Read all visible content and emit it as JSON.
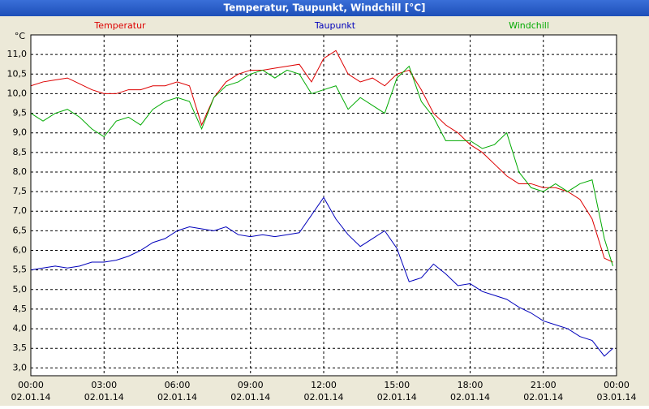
{
  "chart_data": {
    "type": "line",
    "title": "Temperatur, Taupunkt, Windchill [°C]",
    "y_unit": "°C",
    "x": [
      0,
      0.5,
      1,
      1.5,
      2,
      2.5,
      3,
      3.5,
      4,
      4.5,
      5,
      5.5,
      6,
      6.5,
      7,
      7.5,
      8,
      8.5,
      9,
      9.5,
      10,
      10.5,
      11,
      11.5,
      12,
      12.5,
      13,
      13.5,
      14,
      14.5,
      15,
      15.5,
      16,
      16.5,
      17,
      17.5,
      18,
      18.5,
      19,
      19.5,
      20,
      20.5,
      21,
      21.5,
      22,
      22.5,
      23,
      23.5,
      23.85
    ],
    "series": [
      {
        "name": "Temperatur",
        "color": "#dd0000",
        "values": [
          10.2,
          10.3,
          10.35,
          10.4,
          10.25,
          10.1,
          10.0,
          10.0,
          10.1,
          10.1,
          10.2,
          10.2,
          10.3,
          10.2,
          9.2,
          9.9,
          10.3,
          10.5,
          10.6,
          10.6,
          10.65,
          10.7,
          10.75,
          10.3,
          10.9,
          11.1,
          10.5,
          10.3,
          10.4,
          10.2,
          10.5,
          10.6,
          10.1,
          9.5,
          9.2,
          9.0,
          8.7,
          8.5,
          8.2,
          7.9,
          7.7,
          7.7,
          7.6,
          7.6,
          7.5,
          7.3,
          6.8,
          5.8,
          5.7
        ]
      },
      {
        "name": "Taupunkt",
        "color": "#0000bb",
        "values": [
          5.5,
          5.55,
          5.6,
          5.55,
          5.6,
          5.7,
          5.7,
          5.75,
          5.85,
          6.0,
          6.2,
          6.3,
          6.5,
          6.6,
          6.55,
          6.5,
          6.6,
          6.4,
          6.35,
          6.4,
          6.35,
          6.4,
          6.45,
          6.9,
          7.35,
          6.8,
          6.4,
          6.1,
          6.3,
          6.5,
          6.05,
          5.2,
          5.3,
          5.65,
          5.4,
          5.1,
          5.15,
          4.95,
          4.85,
          4.75,
          4.55,
          4.4,
          4.2,
          4.1,
          4.0,
          3.8,
          3.7,
          3.3,
          3.5
        ]
      },
      {
        "name": "Windchill",
        "color": "#00aa00",
        "values": [
          9.5,
          9.3,
          9.5,
          9.6,
          9.4,
          9.1,
          8.9,
          9.3,
          9.4,
          9.2,
          9.6,
          9.8,
          9.9,
          9.8,
          9.1,
          9.9,
          10.2,
          10.3,
          10.5,
          10.6,
          10.4,
          10.6,
          10.5,
          10.0,
          10.1,
          10.2,
          9.6,
          9.9,
          9.7,
          9.5,
          10.4,
          10.7,
          9.8,
          9.4,
          8.8,
          8.8,
          8.8,
          8.6,
          8.7,
          9.0,
          8.0,
          7.6,
          7.5,
          7.7,
          7.5,
          7.7,
          7.8,
          6.3,
          5.6
        ]
      }
    ],
    "xlim": [
      0,
      24
    ],
    "xticks": [
      {
        "value": 0,
        "label": "00:00"
      },
      {
        "value": 3,
        "label": "03:00"
      },
      {
        "value": 6,
        "label": "06:00"
      },
      {
        "value": 9,
        "label": "09:00"
      },
      {
        "value": 12,
        "label": "12:00"
      },
      {
        "value": 15,
        "label": "15:00"
      },
      {
        "value": 18,
        "label": "18:00"
      },
      {
        "value": 21,
        "label": "21:00"
      },
      {
        "value": 24,
        "label": "00:00"
      }
    ],
    "xtick_dates": [
      "02.01.14",
      "02.01.14",
      "02.01.14",
      "02.01.14",
      "02.01.14",
      "02.01.14",
      "02.01.14",
      "02.01.14",
      "03.01.14"
    ],
    "ylim": [
      2.8,
      11.5
    ],
    "yticks": [
      {
        "value": 3,
        "label": "3,0"
      },
      {
        "value": 3.5,
        "label": "3,5"
      },
      {
        "value": 4,
        "label": "4,0"
      },
      {
        "value": 4.5,
        "label": "4,5"
      },
      {
        "value": 5,
        "label": "5,0"
      },
      {
        "value": 5.5,
        "label": "5,5"
      },
      {
        "value": 6,
        "label": "6,0"
      },
      {
        "value": 6.5,
        "label": "6,5"
      },
      {
        "value": 7,
        "label": "7,0"
      },
      {
        "value": 7.5,
        "label": "7,5"
      },
      {
        "value": 8,
        "label": "8,0"
      },
      {
        "value": 8.5,
        "label": "8,5"
      },
      {
        "value": 9,
        "label": "9,0"
      },
      {
        "value": 9.5,
        "label": "9,5"
      },
      {
        "value": 10,
        "label": "10,0"
      },
      {
        "value": 10.5,
        "label": "10,5"
      },
      {
        "value": 11,
        "label": "11,0"
      }
    ],
    "grid": true
  }
}
